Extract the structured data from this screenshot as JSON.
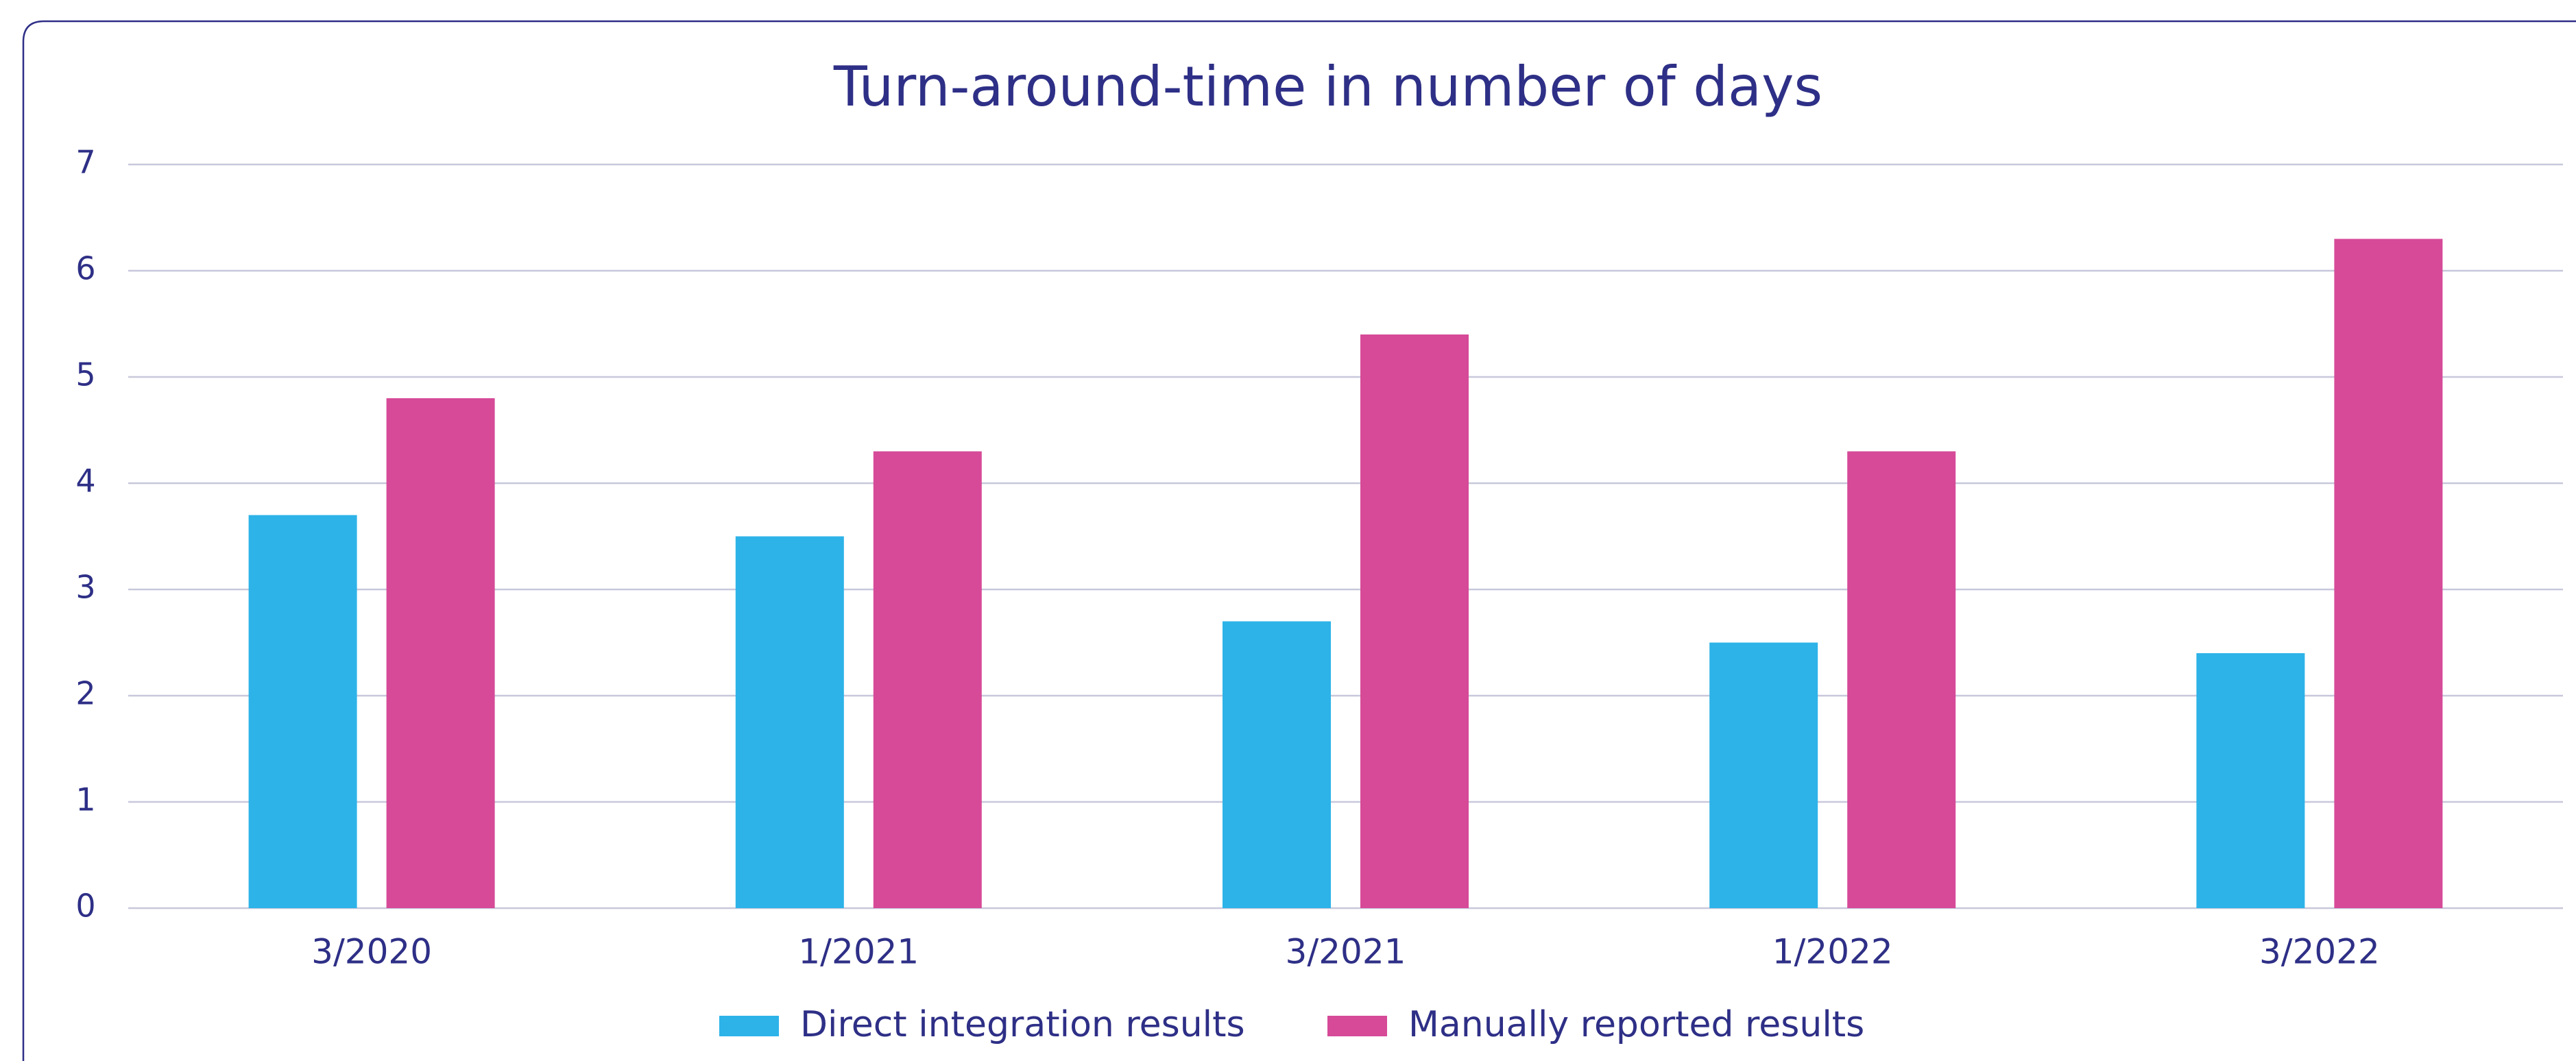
{
  "chart_data": {
    "type": "bar",
    "title": "Turn-around-time in number of days",
    "categories": [
      "3/2020",
      "1/2021",
      "3/2021",
      "1/2022",
      "3/2022"
    ],
    "series": [
      {
        "name": "Direct integration results",
        "color": "#2db3e8",
        "values": [
          3.7,
          3.5,
          2.7,
          2.5,
          2.4
        ]
      },
      {
        "name": "Manually reported results",
        "color": "#d64a98",
        "values": [
          4.8,
          4.3,
          5.4,
          4.3,
          6.3
        ]
      }
    ],
    "ylim": [
      0,
      7
    ],
    "yticks": [
      0,
      1,
      2,
      3,
      4,
      5,
      6,
      7
    ],
    "grid": true,
    "legend": "bottom"
  }
}
